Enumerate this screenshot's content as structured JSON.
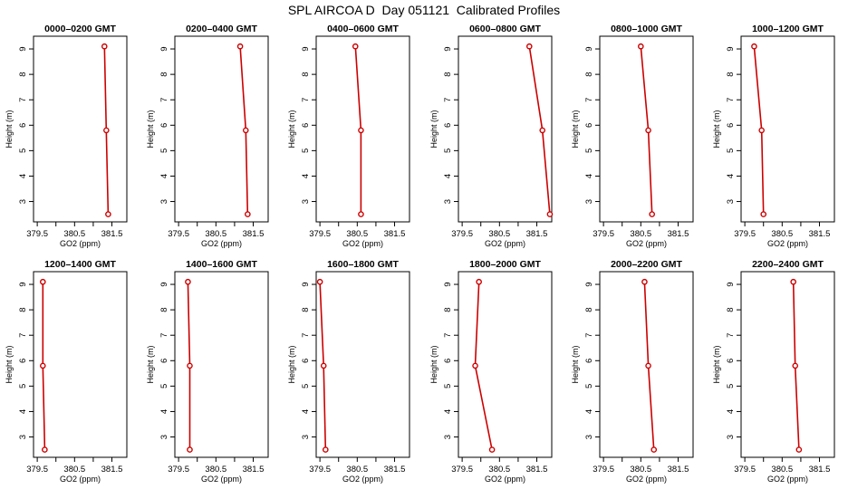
{
  "title": "SPL AIRCOA D  Day 051121  Calibrated Profiles",
  "colors": {
    "series": "#cc0000",
    "axis": "#000000"
  },
  "chart_data": [
    {
      "type": "line",
      "title": "0000–0200 GMT",
      "xlabel": "GO2 (ppm)",
      "ylabel": "Height (m)",
      "xlim": [
        379.4,
        381.9
      ],
      "ylim": [
        2.2,
        9.5
      ],
      "xticks": [
        "379.5",
        "380.5",
        "381.5"
      ],
      "yticks": [
        "3",
        "4",
        "5",
        "6",
        "7",
        "8",
        "9"
      ],
      "x": [
        381.4,
        381.35,
        381.3
      ],
      "y": [
        2.5,
        5.8,
        9.1
      ]
    },
    {
      "type": "line",
      "title": "0200–0400 GMT",
      "xlabel": "GO2 (ppm)",
      "ylabel": "Height (m)",
      "xlim": [
        379.4,
        381.9
      ],
      "ylim": [
        2.2,
        9.5
      ],
      "xticks": [
        "379.5",
        "380.5",
        "381.5"
      ],
      "yticks": [
        "3",
        "4",
        "5",
        "6",
        "7",
        "8",
        "9"
      ],
      "x": [
        381.35,
        381.3,
        381.15
      ],
      "y": [
        2.5,
        5.8,
        9.1
      ]
    },
    {
      "type": "line",
      "title": "0400–0600 GMT",
      "xlabel": "GO2 (ppm)",
      "ylabel": "Height (m)",
      "xlim": [
        379.4,
        381.9
      ],
      "ylim": [
        2.2,
        9.5
      ],
      "xticks": [
        "379.5",
        "380.5",
        "381.5"
      ],
      "yticks": [
        "3",
        "4",
        "5",
        "6",
        "7",
        "8",
        "9"
      ],
      "x": [
        380.6,
        380.6,
        380.45
      ],
      "y": [
        2.5,
        5.8,
        9.1
      ]
    },
    {
      "type": "line",
      "title": "0600–0800 GMT",
      "xlabel": "GO2 (ppm)",
      "ylabel": "Height (m)",
      "xlim": [
        379.4,
        381.9
      ],
      "ylim": [
        2.2,
        9.5
      ],
      "xticks": [
        "379.5",
        "380.5",
        "381.5"
      ],
      "yticks": [
        "3",
        "4",
        "5",
        "6",
        "7",
        "8",
        "9"
      ],
      "x": [
        381.85,
        381.65,
        381.3
      ],
      "y": [
        2.5,
        5.8,
        9.1
      ]
    },
    {
      "type": "line",
      "title": "0800–1000 GMT",
      "xlabel": "GO2 (ppm)",
      "ylabel": "Height (m)",
      "xlim": [
        379.4,
        381.9
      ],
      "ylim": [
        2.2,
        9.5
      ],
      "xticks": [
        "379.5",
        "380.5",
        "381.5"
      ],
      "yticks": [
        "3",
        "4",
        "5",
        "6",
        "7",
        "8",
        "9"
      ],
      "x": [
        380.8,
        380.7,
        380.5
      ],
      "y": [
        2.5,
        5.8,
        9.1
      ]
    },
    {
      "type": "line",
      "title": "1000–1200 GMT",
      "xlabel": "GO2 (ppm)",
      "ylabel": "Height (m)",
      "xlim": [
        379.4,
        381.9
      ],
      "ylim": [
        2.2,
        9.5
      ],
      "xticks": [
        "379.5",
        "380.5",
        "381.5"
      ],
      "yticks": [
        "3",
        "4",
        "5",
        "6",
        "7",
        "8",
        "9"
      ],
      "x": [
        380.0,
        379.95,
        379.75
      ],
      "y": [
        2.5,
        5.8,
        9.1
      ]
    },
    {
      "type": "line",
      "title": "1200–1400 GMT",
      "xlabel": "GO2 (ppm)",
      "ylabel": "Height (m)",
      "xlim": [
        379.4,
        381.9
      ],
      "ylim": [
        2.2,
        9.5
      ],
      "xticks": [
        "379.5",
        "380.5",
        "381.5"
      ],
      "yticks": [
        "3",
        "4",
        "5",
        "6",
        "7",
        "8",
        "9"
      ],
      "x": [
        379.7,
        379.65,
        379.65
      ],
      "y": [
        2.5,
        5.8,
        9.1
      ]
    },
    {
      "type": "line",
      "title": "1400–1600 GMT",
      "xlabel": "GO2 (ppm)",
      "ylabel": "Height (m)",
      "xlim": [
        379.4,
        381.9
      ],
      "ylim": [
        2.2,
        9.5
      ],
      "xticks": [
        "379.5",
        "380.5",
        "381.5"
      ],
      "yticks": [
        "3",
        "4",
        "5",
        "6",
        "7",
        "8",
        "9"
      ],
      "x": [
        379.8,
        379.8,
        379.75
      ],
      "y": [
        2.5,
        5.8,
        9.1
      ]
    },
    {
      "type": "line",
      "title": "1600–1800 GMT",
      "xlabel": "GO2 (ppm)",
      "ylabel": "Height (m)",
      "xlim": [
        379.4,
        381.9
      ],
      "ylim": [
        2.2,
        9.5
      ],
      "xticks": [
        "379.5",
        "380.5",
        "381.5"
      ],
      "yticks": [
        "3",
        "4",
        "5",
        "6",
        "7",
        "8",
        "9"
      ],
      "x": [
        379.65,
        379.6,
        379.5
      ],
      "y": [
        2.5,
        5.8,
        9.1
      ]
    },
    {
      "type": "line",
      "title": "1800–2000 GMT",
      "xlabel": "GO2 (ppm)",
      "ylabel": "Height (m)",
      "xlim": [
        379.4,
        381.9
      ],
      "ylim": [
        2.2,
        9.5
      ],
      "xticks": [
        "379.5",
        "380.5",
        "381.5"
      ],
      "yticks": [
        "3",
        "4",
        "5",
        "6",
        "7",
        "8",
        "9"
      ],
      "x": [
        380.3,
        379.85,
        379.95
      ],
      "y": [
        2.5,
        5.8,
        9.1
      ]
    },
    {
      "type": "line",
      "title": "2000–2200 GMT",
      "xlabel": "GO2 (ppm)",
      "ylabel": "Height (m)",
      "xlim": [
        379.4,
        381.9
      ],
      "ylim": [
        2.2,
        9.5
      ],
      "xticks": [
        "379.5",
        "380.5",
        "381.5"
      ],
      "yticks": [
        "3",
        "4",
        "5",
        "6",
        "7",
        "8",
        "9"
      ],
      "x": [
        380.85,
        380.7,
        380.6
      ],
      "y": [
        2.5,
        5.8,
        9.1
      ]
    },
    {
      "type": "line",
      "title": "2200–2400 GMT",
      "xlabel": "GO2 (ppm)",
      "ylabel": "Height (m)",
      "xlim": [
        379.4,
        381.9
      ],
      "ylim": [
        2.2,
        9.5
      ],
      "xticks": [
        "379.5",
        "380.5",
        "381.5"
      ],
      "yticks": [
        "3",
        "4",
        "5",
        "6",
        "7",
        "8",
        "9"
      ],
      "x": [
        380.95,
        380.85,
        380.8
      ],
      "y": [
        2.5,
        5.8,
        9.1
      ]
    }
  ]
}
